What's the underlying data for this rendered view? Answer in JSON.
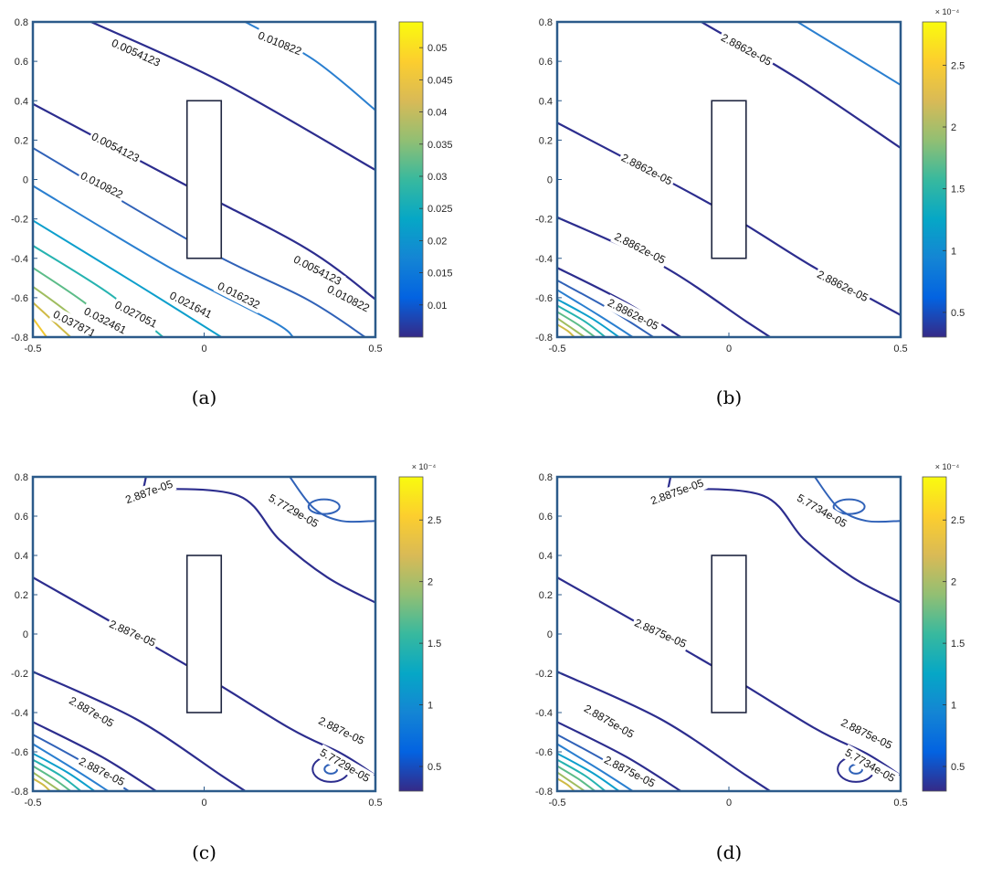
{
  "chart_data": [
    {
      "type": "contour",
      "panel_label": "(a)",
      "xlim": [
        -0.5,
        0.5
      ],
      "ylim": [
        -0.8,
        0.8
      ],
      "x_ticks": [
        "-0.5",
        "0",
        "0.5"
      ],
      "y_ticks": [
        "0.8",
        "0.6",
        "0.4",
        "0.2",
        "0",
        "-0.2",
        "-0.4",
        "-0.6",
        "-0.8"
      ],
      "obstacle": {
        "x": [
          -0.05,
          0.05
        ],
        "y": [
          -0.4,
          0.4
        ]
      },
      "colorbar": {
        "range": [
          0.005,
          0.054
        ],
        "ticks": [
          "0.05",
          "0.045",
          "0.04",
          "0.035",
          "0.03",
          "0.025",
          "0.02",
          "0.015",
          "0.01"
        ],
        "exponent": ""
      },
      "contour_labels": [
        "0.0054123",
        "0.010822",
        "0.0054123",
        "0.010822",
        "0.0054123",
        "0.016232",
        "0.010822",
        "0.021641",
        "0.027051",
        "0.032461",
        "0.037871"
      ]
    },
    {
      "type": "contour",
      "panel_label": "(b)",
      "xlim": [
        -0.5,
        0.5
      ],
      "ylim": [
        -0.8,
        0.8
      ],
      "x_ticks": [
        "-0.5",
        "0",
        "0.5"
      ],
      "y_ticks": [
        "0.8",
        "0.6",
        "0.4",
        "0.2",
        "0",
        "-0.2",
        "-0.4",
        "-0.6",
        "-0.8"
      ],
      "obstacle": {
        "x": [
          -0.05,
          0.05
        ],
        "y": [
          -0.4,
          0.4
        ]
      },
      "colorbar": {
        "range": [
          0.3,
          2.85
        ],
        "ticks": [
          "2.5",
          "2",
          "1.5",
          "1",
          "0.5"
        ],
        "exponent": "× 10⁻⁴"
      },
      "contour_labels": [
        "2.8862e-05",
        "2.8862e-05",
        "2.8862e-05",
        "2.8862e-05",
        "2.8862e-05"
      ]
    },
    {
      "type": "contour",
      "panel_label": "(c)",
      "xlim": [
        -0.5,
        0.5
      ],
      "ylim": [
        -0.8,
        0.8
      ],
      "x_ticks": [
        "-0.5",
        "0",
        "0.5"
      ],
      "y_ticks": [
        "0.8",
        "0.6",
        "0.4",
        "0.2",
        "0",
        "-0.2",
        "-0.4",
        "-0.6",
        "-0.8"
      ],
      "obstacle": {
        "x": [
          -0.05,
          0.05
        ],
        "y": [
          -0.4,
          0.4
        ]
      },
      "colorbar": {
        "range": [
          0.3,
          2.85
        ],
        "ticks": [
          "2.5",
          "2",
          "1.5",
          "1",
          "0.5"
        ],
        "exponent": "× 10⁻⁴"
      },
      "contour_labels": [
        "2.887e-05",
        "5.7729e-05",
        "2.887e-05",
        "2.887e-05",
        "2.887e-05",
        "2.887e-05",
        "5.7729e-05"
      ]
    },
    {
      "type": "contour",
      "panel_label": "(d)",
      "xlim": [
        -0.5,
        0.5
      ],
      "ylim": [
        -0.8,
        0.8
      ],
      "x_ticks": [
        "-0.5",
        "0",
        "0.5"
      ],
      "y_ticks": [
        "0.8",
        "0.6",
        "0.4",
        "0.2",
        "0",
        "-0.2",
        "-0.4",
        "-0.6",
        "-0.8"
      ],
      "obstacle": {
        "x": [
          -0.05,
          0.05
        ],
        "y": [
          -0.4,
          0.4
        ]
      },
      "colorbar": {
        "range": [
          0.3,
          2.85
        ],
        "ticks": [
          "2.5",
          "2",
          "1.5",
          "1",
          "0.5"
        ],
        "exponent": "× 10⁻⁴"
      },
      "contour_labels": [
        "2.8875e-05",
        "5.7734e-05",
        "2.8875e-05",
        "2.8875e-05",
        "2.8875e-05",
        "2.8875e-05",
        "5.7734e-05"
      ]
    }
  ]
}
